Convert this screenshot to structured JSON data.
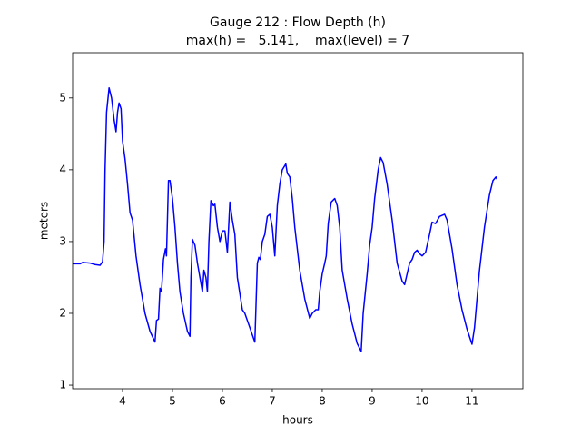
{
  "chart_data": {
    "type": "line",
    "title": "Gauge 212 : Flow Depth (h)",
    "subtitle": "max(h) =   5.141,    max(level) = 7",
    "xlabel": "hours",
    "ylabel": "meters",
    "xlim": [
      3,
      12.02
    ],
    "ylim": [
      0.95,
      5.63
    ],
    "xticks": [
      4,
      5,
      6,
      7,
      8,
      9,
      10,
      11
    ],
    "yticks": [
      1,
      2,
      3,
      4,
      5
    ],
    "series": [
      {
        "color": "#0000ff",
        "x": [
          3.0,
          3.15,
          3.2,
          3.35,
          3.45,
          3.55,
          3.6,
          3.63,
          3.65,
          3.68,
          3.73,
          3.78,
          3.83,
          3.87,
          3.9,
          3.93,
          3.97,
          4.0,
          4.05,
          4.1,
          4.15,
          4.2,
          4.27,
          4.35,
          4.45,
          4.55,
          4.65,
          4.68,
          4.72,
          4.75,
          4.78,
          4.82,
          4.86,
          4.88,
          4.92,
          4.95,
          5.0,
          5.05,
          5.1,
          5.15,
          5.22,
          5.3,
          5.35,
          5.37,
          5.4,
          5.45,
          5.5,
          5.55,
          5.6,
          5.63,
          5.67,
          5.7,
          5.73,
          5.77,
          5.82,
          5.85,
          5.9,
          5.95,
          6.0,
          6.05,
          6.1,
          6.15,
          6.2,
          6.25,
          6.3,
          6.4,
          6.45,
          6.55,
          6.65,
          6.7,
          6.73,
          6.76,
          6.8,
          6.85,
          6.9,
          6.95,
          7.0,
          7.05,
          7.1,
          7.15,
          7.2,
          7.27,
          7.3,
          7.35,
          7.4,
          7.45,
          7.55,
          7.65,
          7.75,
          7.8,
          7.87,
          7.92,
          7.95,
          8.0,
          8.05,
          8.08,
          8.12,
          8.18,
          8.25,
          8.3,
          8.35,
          8.4,
          8.5,
          8.6,
          8.7,
          8.78,
          8.82,
          8.9,
          8.95,
          9.0,
          9.05,
          9.12,
          9.17,
          9.22,
          9.3,
          9.4,
          9.5,
          9.6,
          9.65,
          9.7,
          9.75,
          9.8,
          9.85,
          9.9,
          9.95,
          10.0,
          10.07,
          10.15,
          10.2,
          10.27,
          10.35,
          10.45,
          10.5,
          10.6,
          10.7,
          10.8,
          10.9,
          11.0,
          11.05,
          11.15,
          11.25,
          11.35,
          11.42,
          11.48,
          11.5
        ],
        "values": [
          2.69,
          2.69,
          2.71,
          2.7,
          2.68,
          2.67,
          2.72,
          3.0,
          4.0,
          4.8,
          5.14,
          5.0,
          4.7,
          4.53,
          4.8,
          4.93,
          4.85,
          4.4,
          4.15,
          3.8,
          3.4,
          3.3,
          2.8,
          2.4,
          2.0,
          1.75,
          1.6,
          1.9,
          1.92,
          2.35,
          2.3,
          2.75,
          2.9,
          2.8,
          3.85,
          3.85,
          3.6,
          3.2,
          2.7,
          2.3,
          2.0,
          1.75,
          1.68,
          2.5,
          3.03,
          2.95,
          2.7,
          2.5,
          2.3,
          2.6,
          2.5,
          2.3,
          3.0,
          3.57,
          3.5,
          3.52,
          3.2,
          3.0,
          3.15,
          3.15,
          2.85,
          3.55,
          3.3,
          3.1,
          2.5,
          2.05,
          2.0,
          1.8,
          1.6,
          2.7,
          2.78,
          2.75,
          3.0,
          3.1,
          3.35,
          3.38,
          3.2,
          2.8,
          3.5,
          3.8,
          4.0,
          4.08,
          3.95,
          3.9,
          3.6,
          3.2,
          2.6,
          2.2,
          1.93,
          2.0,
          2.05,
          2.05,
          2.3,
          2.55,
          2.7,
          2.8,
          3.25,
          3.55,
          3.6,
          3.5,
          3.2,
          2.6,
          2.2,
          1.85,
          1.58,
          1.47,
          2.0,
          2.55,
          2.95,
          3.2,
          3.6,
          4.0,
          4.17,
          4.1,
          3.8,
          3.3,
          2.7,
          2.45,
          2.4,
          2.55,
          2.7,
          2.75,
          2.85,
          2.88,
          2.83,
          2.8,
          2.85,
          3.1,
          3.27,
          3.25,
          3.35,
          3.38,
          3.3,
          2.9,
          2.4,
          2.05,
          1.78,
          1.57,
          1.8,
          2.6,
          3.2,
          3.65,
          3.85,
          3.9,
          3.87
        ]
      }
    ]
  }
}
